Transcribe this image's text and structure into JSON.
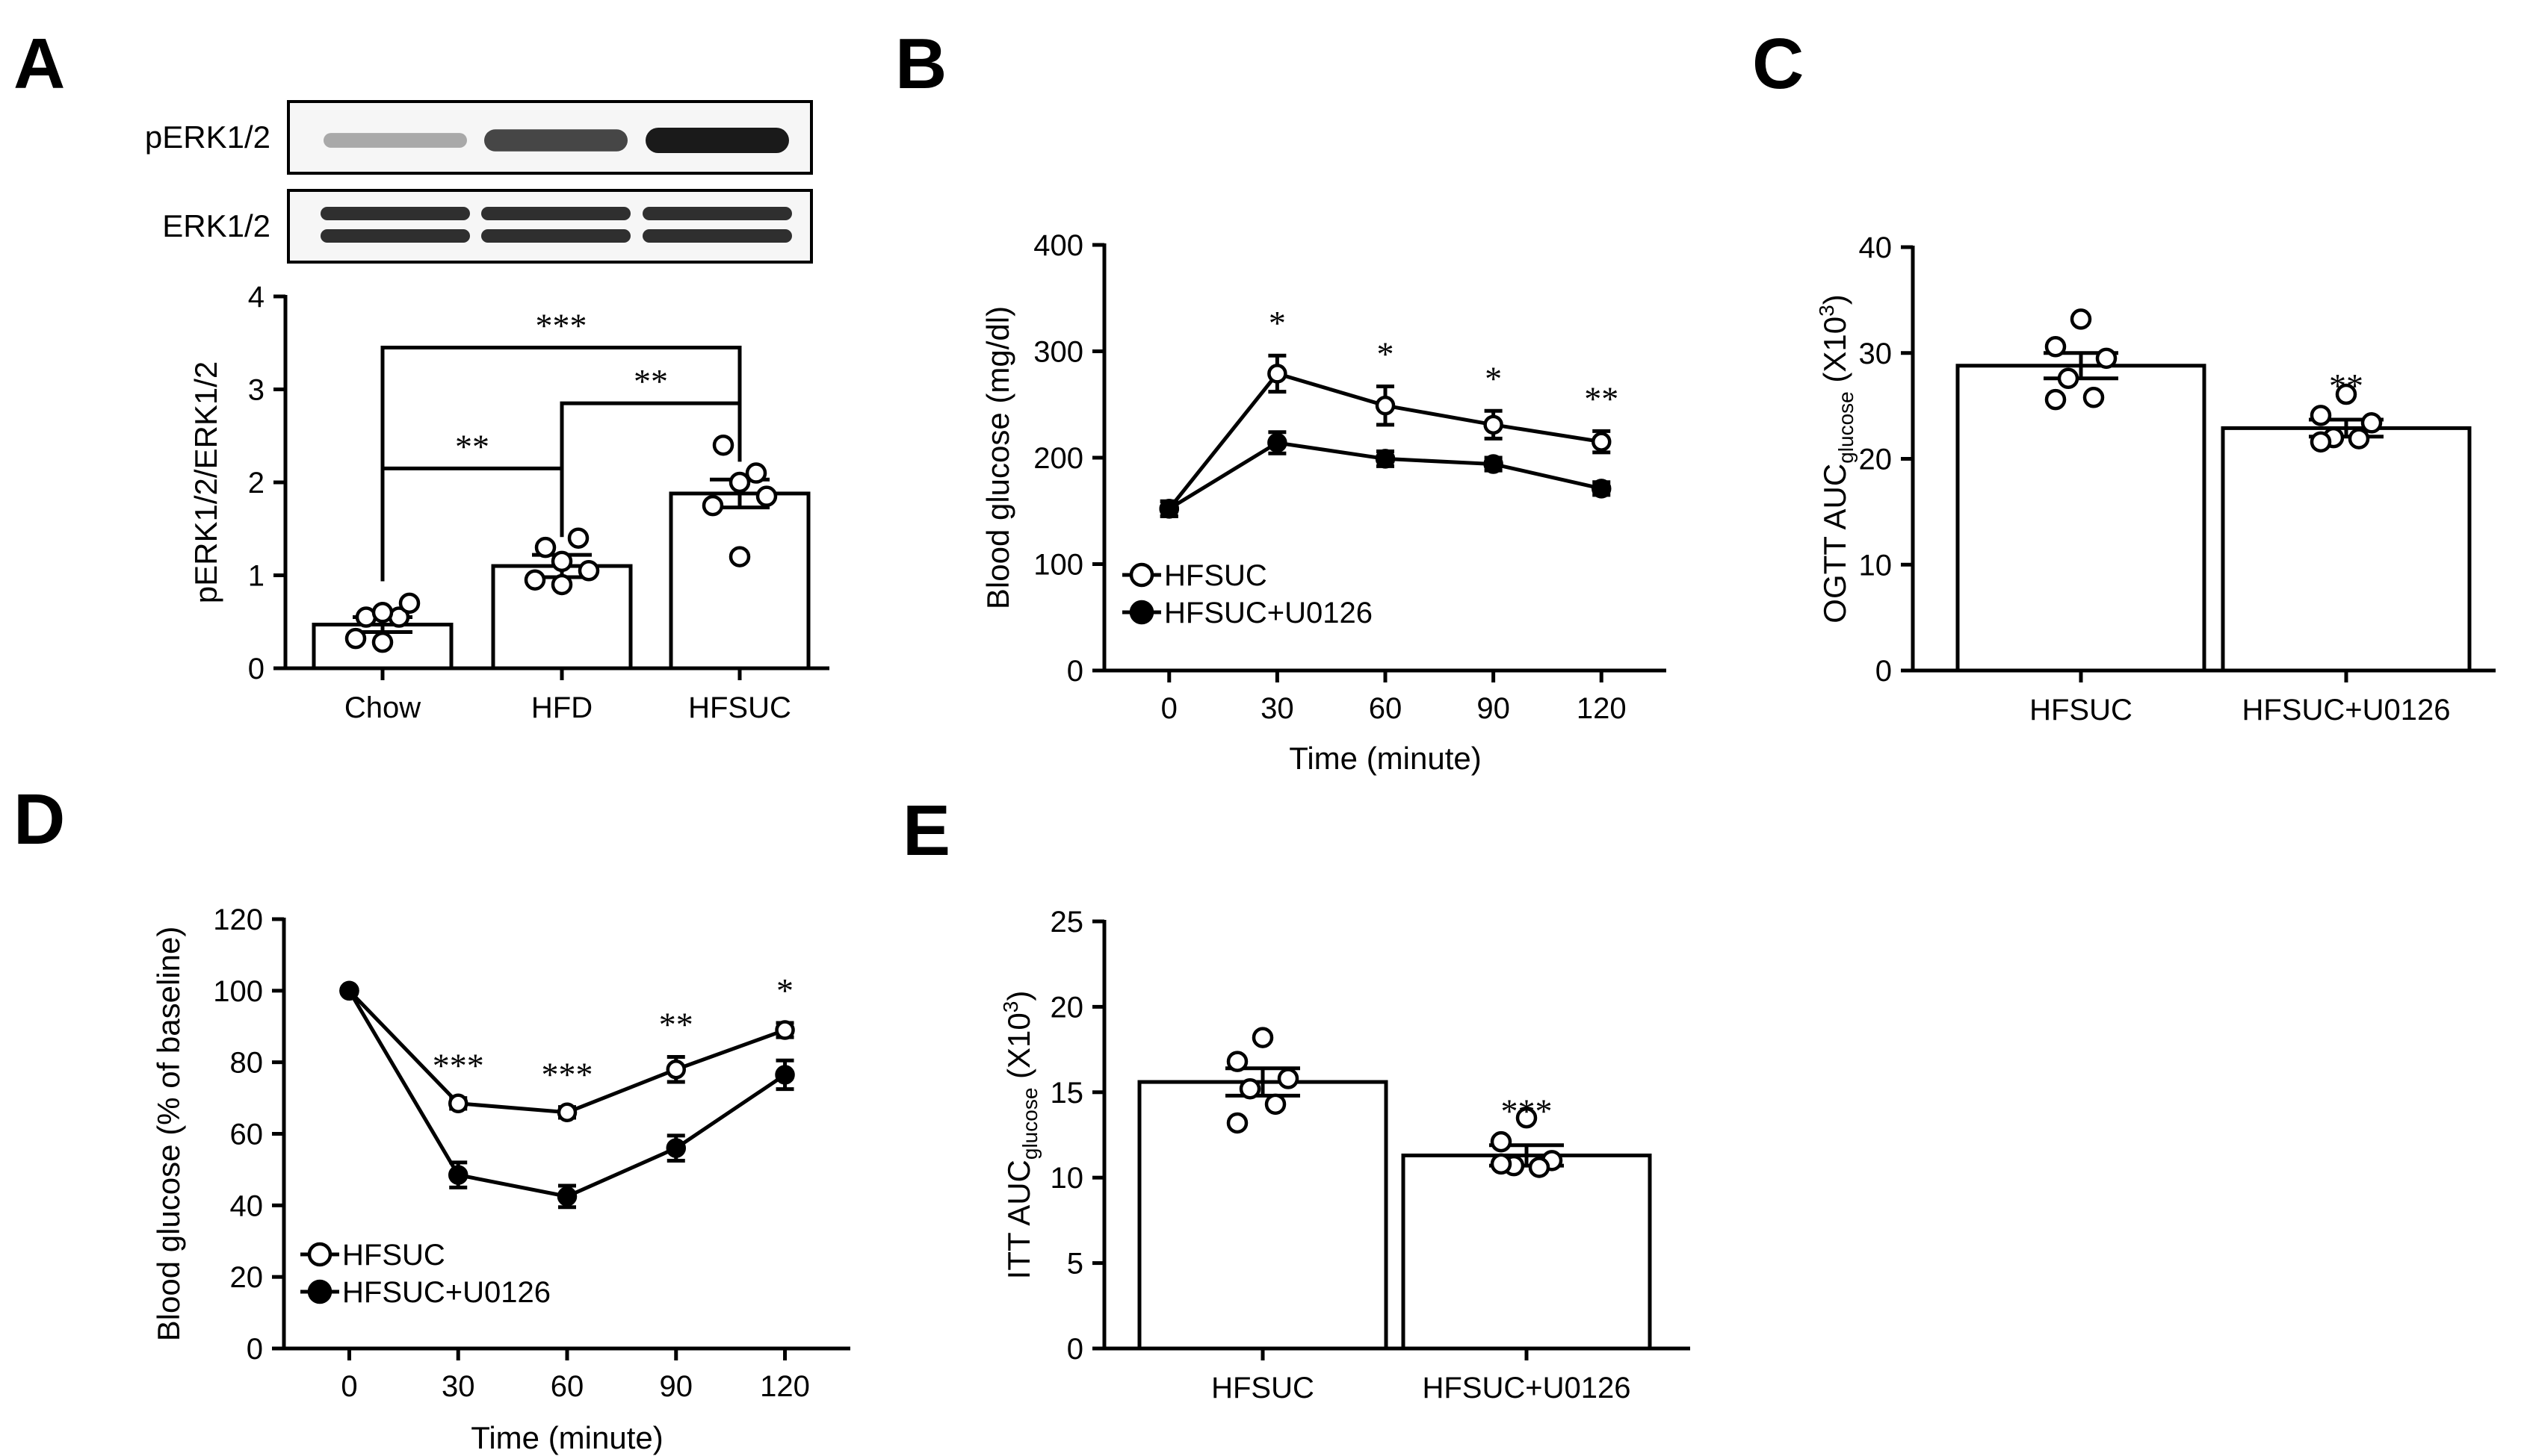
{
  "panel_labels": [
    "A",
    "B",
    "C",
    "D",
    "E"
  ],
  "chart_data": [
    {
      "panel": "A",
      "type": "bar",
      "blot": {
        "rows": [
          {
            "label": "pERK1/2",
            "intensity": [
              0.35,
              0.8,
              1.0
            ]
          },
          {
            "label": "ERK1/2",
            "intensity": [
              0.9,
              0.9,
              0.9
            ]
          }
        ]
      },
      "categories": [
        "Chow",
        "HFD",
        "HFSUC"
      ],
      "values": [
        0.47,
        1.1,
        1.88
      ],
      "errors": [
        0.08,
        0.12,
        0.15
      ],
      "points": [
        [
          0.55,
          0.55,
          0.6,
          0.7,
          0.32,
          0.28
        ],
        [
          1.3,
          1.4,
          1.15,
          1.05,
          0.95,
          0.9
        ],
        [
          2.4,
          2.1,
          2.0,
          1.85,
          1.75,
          1.2
        ]
      ],
      "ylabel": "pERK1/2/ERK1/2",
      "ylim": [
        0,
        4
      ],
      "yticks": [
        "0",
        "1",
        "2",
        "3",
        "4"
      ],
      "significance": [
        {
          "from": 0,
          "to": 1,
          "y": 2.15,
          "label": "**"
        },
        {
          "from": 1,
          "to": 2,
          "y": 2.85,
          "label": "**"
        },
        {
          "from": 0,
          "to": 2,
          "y": 3.45,
          "label": "***"
        }
      ]
    },
    {
      "panel": "B",
      "type": "line",
      "x": [
        0,
        30,
        60,
        90,
        120
      ],
      "xticks": [
        "0",
        "30",
        "60",
        "90",
        "120"
      ],
      "yticks": [
        "0",
        "100",
        "200",
        "300",
        "400"
      ],
      "xlim": [
        -18,
        138
      ],
      "ylim": [
        0,
        400
      ],
      "xlabel": "Time (minute)",
      "ylabel": "Blood glucose (mg/dl)",
      "series": [
        {
          "name": "HFSUC",
          "filled": false,
          "values": [
            152,
            279,
            249,
            231,
            215
          ],
          "errors": [
            7,
            17,
            18,
            13,
            10
          ]
        },
        {
          "name": "HFSUC+U0126",
          "filled": true,
          "values": [
            152,
            214,
            199,
            194,
            171
          ],
          "errors": [
            7,
            10,
            7,
            6,
            6
          ]
        }
      ],
      "annotations": [
        "",
        "*",
        "*",
        "*",
        "**"
      ]
    },
    {
      "panel": "C",
      "type": "bar",
      "categories": [
        "HFSUC",
        "HFSUC+U0126"
      ],
      "values": [
        28.8,
        22.9
      ],
      "errors": [
        1.2,
        0.8
      ],
      "points": [
        [
          33.2,
          30.6,
          29.5,
          27.6,
          25.8,
          25.6
        ],
        [
          26.1,
          24.1,
          23.4,
          22.0,
          21.9,
          21.6
        ]
      ],
      "ylabel_main": "OGTT AUC",
      "ylabel_sub": "glucose",
      "ylabel_unit": "(X10",
      "ylabel_sup": "3",
      "ylabel_close": ")",
      "ylim": [
        0,
        40
      ],
      "yticks": [
        "0",
        "10",
        "20",
        "30",
        "40"
      ],
      "annotations": [
        "",
        "**"
      ]
    },
    {
      "panel": "D",
      "type": "line",
      "x": [
        0,
        30,
        60,
        90,
        120
      ],
      "xticks": [
        "0",
        "30",
        "60",
        "90",
        "120"
      ],
      "yticks": [
        "0",
        "20",
        "40",
        "60",
        "80",
        "100",
        "120"
      ],
      "xlim": [
        -18,
        138
      ],
      "ylim": [
        0,
        120
      ],
      "xlabel": "Time (minute)",
      "ylabel": "Blood glucose (% of baseline)",
      "series": [
        {
          "name": "HFSUC",
          "filled": false,
          "values": [
            100,
            68.5,
            66,
            78,
            89
          ],
          "errors": [
            0,
            1.5,
            1.5,
            3.5,
            2
          ]
        },
        {
          "name": "HFSUC+U0126",
          "filled": true,
          "values": [
            100,
            48.5,
            42.5,
            56,
            76.5
          ],
          "errors": [
            0,
            3.5,
            3,
            3.5,
            4
          ]
        }
      ],
      "annotations": [
        "",
        "***",
        "***",
        "**",
        "*"
      ]
    },
    {
      "panel": "E",
      "type": "bar",
      "categories": [
        "HFSUC",
        "HFSUC+U0126"
      ],
      "values": [
        15.6,
        11.3
      ],
      "errors": [
        0.8,
        0.6
      ],
      "points": [
        [
          18.2,
          16.8,
          15.8,
          15.2,
          14.3,
          13.2
        ],
        [
          13.5,
          12.1,
          11.0,
          10.7,
          10.6,
          10.8
        ]
      ],
      "ylabel_main": "ITT AUC",
      "ylabel_sub": "glucose",
      "ylabel_unit": "(X10",
      "ylabel_sup": "3",
      "ylabel_close": ")",
      "ylim": [
        0,
        25
      ],
      "yticks": [
        "0",
        "5",
        "10",
        "15",
        "20",
        "25"
      ],
      "annotations": [
        "",
        "***"
      ]
    }
  ]
}
